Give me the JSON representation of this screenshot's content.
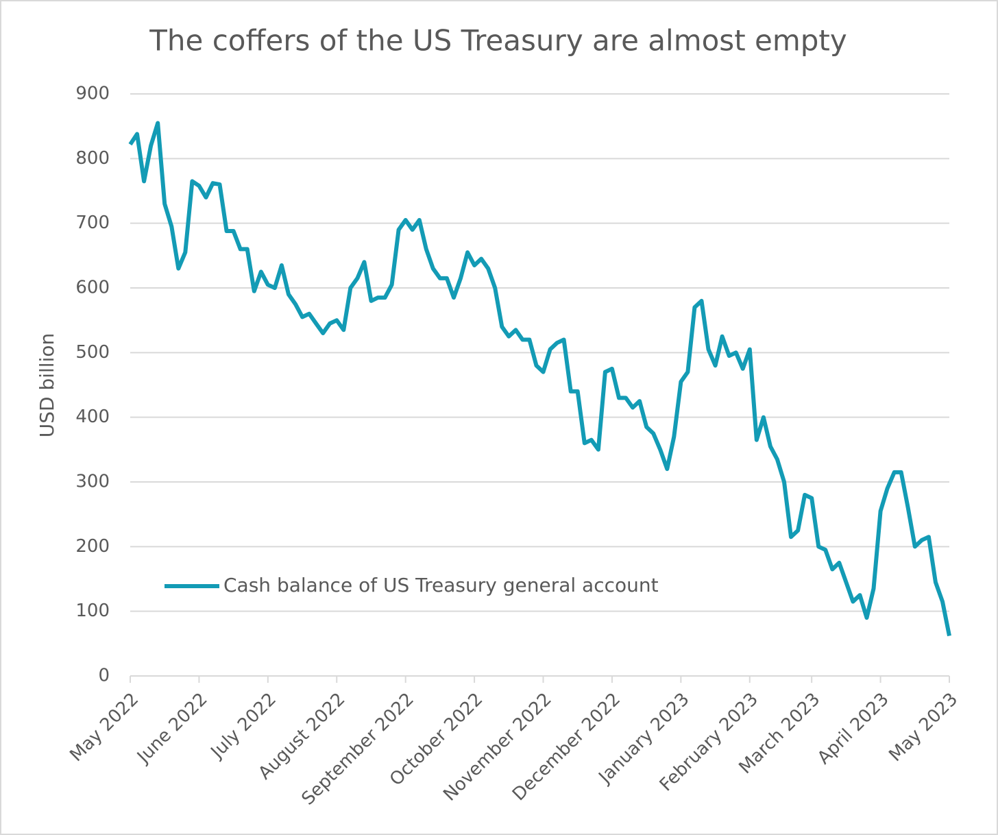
{
  "chart_data": {
    "type": "line",
    "title": "The coffers of the US Treasury are almost empty",
    "y_label": "USD billion",
    "categories": [
      "May 2022",
      null,
      null,
      null,
      null,
      null,
      null,
      null,
      null,
      null,
      "June 2022",
      null,
      null,
      null,
      null,
      null,
      null,
      null,
      null,
      null,
      "July 2022",
      null,
      null,
      null,
      null,
      null,
      null,
      null,
      null,
      null,
      "August 2022",
      null,
      null,
      null,
      null,
      null,
      null,
      null,
      null,
      null,
      "September 2022",
      null,
      null,
      null,
      null,
      null,
      null,
      null,
      null,
      null,
      "October 2022",
      null,
      null,
      null,
      null,
      null,
      null,
      null,
      null,
      null,
      "November 2022",
      null,
      null,
      null,
      null,
      null,
      null,
      null,
      null,
      null,
      "December 2022",
      null,
      null,
      null,
      null,
      null,
      null,
      null,
      null,
      null,
      "January 2023",
      null,
      null,
      null,
      null,
      null,
      null,
      null,
      null,
      null,
      "February 2023",
      null,
      null,
      null,
      null,
      null,
      null,
      null,
      null,
      "March 2023",
      null,
      null,
      null,
      null,
      null,
      null,
      null,
      null,
      null,
      "April 2023",
      null,
      null,
      null,
      null,
      null,
      null,
      null,
      null,
      null,
      "May 2023"
    ],
    "series": [
      {
        "name": "Cash balance of US Treasury general account",
        "color": "#139bb5",
        "values": [
          822,
          838,
          765,
          820,
          855,
          730,
          695,
          630,
          655,
          765,
          758,
          740,
          762,
          760,
          688,
          688,
          660,
          660,
          595,
          625,
          605,
          600,
          635,
          590,
          575,
          555,
          560,
          545,
          530,
          545,
          550,
          535,
          600,
          615,
          640,
          580,
          585,
          585,
          605,
          690,
          705,
          690,
          705,
          660,
          630,
          615,
          615,
          585,
          615,
          655,
          635,
          645,
          630,
          600,
          540,
          525,
          535,
          520,
          520,
          480,
          470,
          505,
          515,
          520,
          440,
          440,
          360,
          365,
          350,
          470,
          475,
          430,
          430,
          415,
          425,
          385,
          375,
          350,
          320,
          370,
          455,
          470,
          570,
          580,
          505,
          480,
          525,
          495,
          500,
          475,
          505,
          365,
          400,
          355,
          335,
          300,
          215,
          225,
          280,
          275,
          200,
          195,
          165,
          175,
          145,
          115,
          125,
          90,
          135,
          255,
          290,
          315,
          315,
          260,
          200,
          210,
          215,
          145,
          115,
          62
        ]
      }
    ],
    "ylim": [
      0,
      900
    ],
    "yticks": [
      0,
      100,
      200,
      300,
      400,
      500,
      600,
      700,
      800,
      900
    ],
    "grid": true,
    "legend": "lower left"
  }
}
